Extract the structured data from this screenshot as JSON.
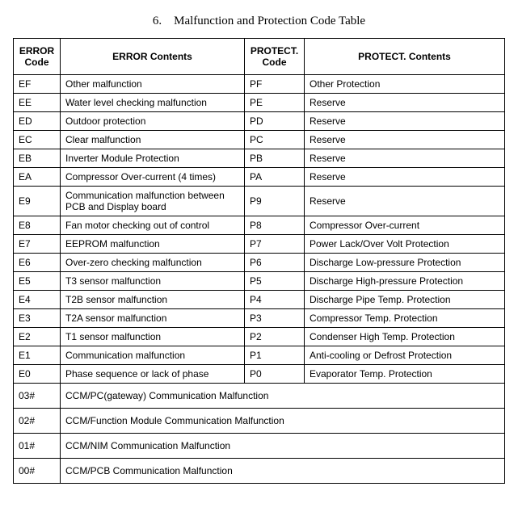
{
  "title": "6. Malfunction and Protection Code Table",
  "headers": {
    "err_code": "ERROR Code",
    "err_content": "ERROR Contents",
    "prot_code": "PROTECT. Code",
    "prot_content": "PROTECT. Contents"
  },
  "rows": [
    {
      "err_code": "EF",
      "err_content": "Other malfunction",
      "prot_code": "PF",
      "prot_content": "Other Protection"
    },
    {
      "err_code": "EE",
      "err_content": "Water level checking malfunction",
      "prot_code": "PE",
      "prot_content": "Reserve"
    },
    {
      "err_code": "ED",
      "err_content": "Outdoor protection",
      "prot_code": "PD",
      "prot_content": "Reserve"
    },
    {
      "err_code": "EC",
      "err_content": "Clear malfunction",
      "prot_code": "PC",
      "prot_content": "Reserve"
    },
    {
      "err_code": "EB",
      "err_content": "Inverter Module Protection",
      "prot_code": "PB",
      "prot_content": "Reserve"
    },
    {
      "err_code": "EA",
      "err_content": "Compressor Over-current (4 times)",
      "prot_code": "PA",
      "prot_content": "Reserve"
    },
    {
      "err_code": "E9",
      "err_content": "Communication  malfunction between  PCB and Display board",
      "prot_code": "P9",
      "prot_content": "Reserve"
    },
    {
      "err_code": "E8",
      "err_content": "Fan motor checking out of control",
      "prot_code": "P8",
      "prot_content": "Compressor Over-current"
    },
    {
      "err_code": "E7",
      "err_content": "EEPROM malfunction",
      "prot_code": "P7",
      "prot_content": "Power Lack/Over Volt Protection"
    },
    {
      "err_code": "E6",
      "err_content": "Over-zero checking malfunction",
      "prot_code": "P6",
      "prot_content": "Discharge Low-pressure Protection"
    },
    {
      "err_code": "E5",
      "err_content": "T3 sensor malfunction",
      "prot_code": "P5",
      "prot_content": "Discharge High-pressure Protection"
    },
    {
      "err_code": "E4",
      "err_content": "T2B sensor malfunction",
      "prot_code": "P4",
      "prot_content": "Discharge Pipe Temp. Protection"
    },
    {
      "err_code": "E3",
      "err_content": "T2A sensor malfunction",
      "prot_code": "P3",
      "prot_content": "Compressor Temp. Protection"
    },
    {
      "err_code": "E2",
      "err_content": "T1 sensor malfunction",
      "prot_code": "P2",
      "prot_content": "Condenser High Temp. Protection"
    },
    {
      "err_code": "E1",
      "err_content": "Communication malfunction",
      "prot_code": "P1",
      "prot_content": "Anti-cooling or Defrost Protection"
    },
    {
      "err_code": "E0",
      "err_content": "Phase sequence or lack of phase",
      "prot_code": "P0",
      "prot_content": "Evaporator Temp. Protection"
    }
  ],
  "span_rows": [
    {
      "code": "03#",
      "content": "CCM/PC(gateway) Communication Malfunction"
    },
    {
      "code": "02#",
      "content": "CCM/Function Module Communication Malfunction"
    },
    {
      "code": "01#",
      "content": "CCM/NIM Communication Malfunction"
    },
    {
      "code": "00#",
      "content": "CCM/PCB Communication Malfunction"
    }
  ],
  "table_style": {
    "border_color": "#000000",
    "background_color": "#ffffff",
    "font_size": 12,
    "header_font_size": 12,
    "font_family": "Arial, sans-serif",
    "title_font_family": "Times New Roman, serif",
    "title_font_size": 15
  }
}
